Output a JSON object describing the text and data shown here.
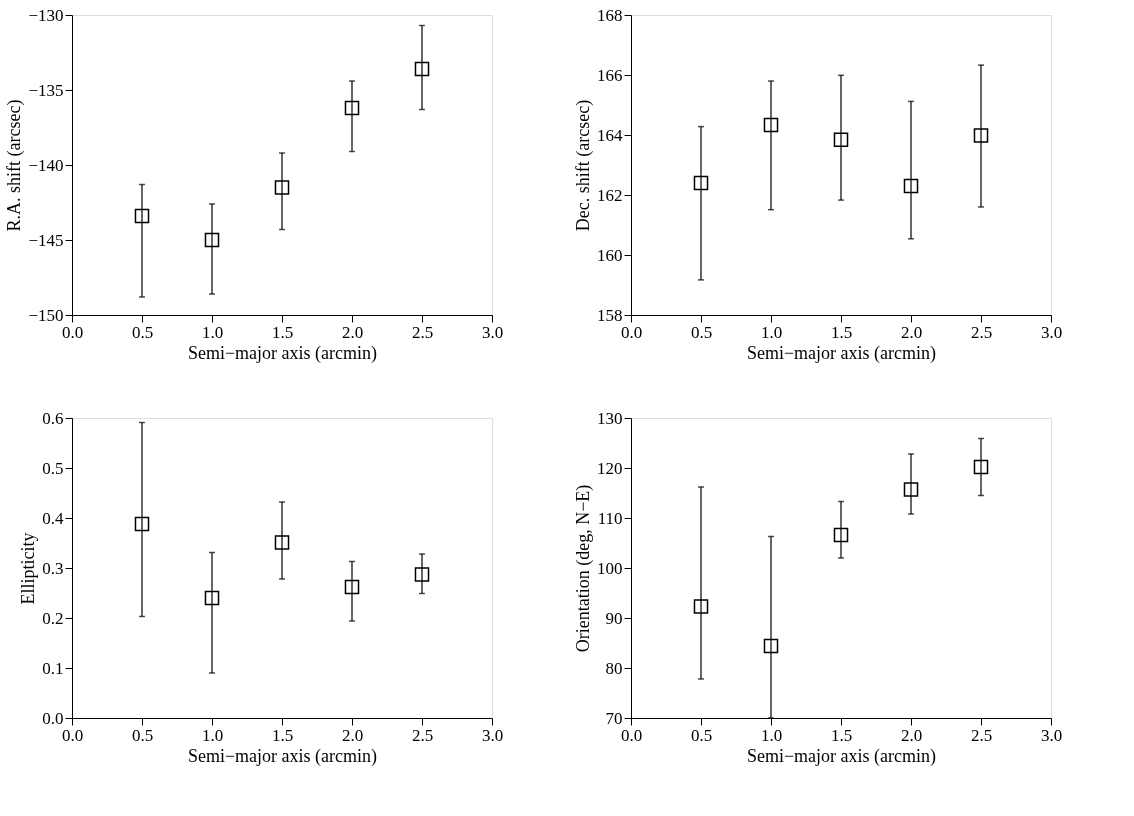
{
  "chart_data": [
    {
      "type": "scatter",
      "xlabel": "Semi−major axis (arcmin)",
      "ylabel": "R.A. shift (arcsec)",
      "x": [
        0.5,
        1.0,
        1.5,
        2.0,
        2.5
      ],
      "marker": "square",
      "grid": false,
      "xlim": [
        0,
        3
      ],
      "xticks": [
        {
          "value": 0,
          "label": "0.0"
        },
        {
          "value": 0.5,
          "label": "0.5"
        },
        {
          "value": 1,
          "label": "1.0"
        },
        {
          "value": 1.5,
          "label": "1.5"
        },
        {
          "value": 2,
          "label": "2.0"
        },
        {
          "value": 2.5,
          "label": "2.5"
        },
        {
          "value": 3,
          "label": "3.0"
        }
      ],
      "ylim": [
        -150,
        -130
      ],
      "yticks": [
        -150,
        -145,
        -140,
        -135,
        -130
      ],
      "series": [
        {
          "color": "#000000",
          "values": [
            -143.4,
            -145.0,
            -141.5,
            -136.2,
            -133.6
          ],
          "errors": [
            [
              -148.8,
              -141.3
            ],
            [
              -148.6,
              -142.6
            ],
            [
              -144.3,
              -139.2
            ],
            [
              -139.1,
              -134.4
            ],
            [
              -136.3,
              -130.7
            ]
          ]
        }
      ]
    },
    {
      "type": "scatter",
      "xlabel": "Semi−major axis (arcmin)",
      "ylabel": "Dec. shift (arcsec)",
      "x": [
        0.5,
        1.0,
        1.5,
        2.0,
        2.5
      ],
      "marker": "square",
      "grid": false,
      "xlim": [
        0,
        3
      ],
      "xticks": [
        {
          "value": 0,
          "label": "0.0"
        },
        {
          "value": 0.5,
          "label": "0.5"
        },
        {
          "value": 1,
          "label": "1.0"
        },
        {
          "value": 1.5,
          "label": "1.5"
        },
        {
          "value": 2,
          "label": "2.0"
        },
        {
          "value": 2.5,
          "label": "2.5"
        },
        {
          "value": 3,
          "label": "3.0"
        }
      ],
      "ylim": [
        158,
        168
      ],
      "yticks": [
        158,
        160,
        162,
        164,
        166,
        168
      ],
      "series": [
        {
          "color": "#000000",
          "values": [
            162.4,
            164.33,
            163.84,
            162.3,
            163.98
          ],
          "errors": [
            [
              159.17,
              164.28
            ],
            [
              161.51,
              165.8
            ],
            [
              161.83,
              165.99
            ],
            [
              160.54,
              165.12
            ],
            [
              161.6,
              166.33
            ]
          ]
        }
      ]
    },
    {
      "type": "scatter",
      "xlabel": "Semi−major axis (arcmin)",
      "ylabel": "Ellipticity",
      "x": [
        0.5,
        1.0,
        1.5,
        2.0,
        2.5
      ],
      "marker": "square",
      "grid": false,
      "xlim": [
        0,
        3
      ],
      "xticks": [
        {
          "value": 0,
          "label": "0.0"
        },
        {
          "value": 0.5,
          "label": "0.5"
        },
        {
          "value": 1,
          "label": "1.0"
        },
        {
          "value": 1.5,
          "label": "1.5"
        },
        {
          "value": 2,
          "label": "2.0"
        },
        {
          "value": 2.5,
          "label": "2.5"
        },
        {
          "value": 3,
          "label": "3.0"
        }
      ],
      "ylim": [
        0,
        0.6
      ],
      "yticks": [
        {
          "value": 0,
          "label": "0.0"
        },
        0.1,
        0.2,
        0.3,
        0.4,
        0.5,
        0.6
      ],
      "series": [
        {
          "color": "#000000",
          "values": [
            0.388,
            0.24,
            0.351,
            0.262,
            0.287
          ],
          "errors": [
            [
              0.203,
              0.591
            ],
            [
              0.09,
              0.331
            ],
            [
              0.278,
              0.432
            ],
            [
              0.194,
              0.313
            ],
            [
              0.249,
              0.328
            ]
          ]
        }
      ]
    },
    {
      "type": "scatter",
      "xlabel": "Semi−major axis (arcmin)",
      "ylabel": "Orientation (deg, N−E)",
      "x": [
        0.5,
        1.0,
        1.5,
        2.0,
        2.5
      ],
      "marker": "square",
      "grid": false,
      "xlim": [
        0,
        3
      ],
      "xticks": [
        {
          "value": 0,
          "label": "0.0"
        },
        {
          "value": 0.5,
          "label": "0.5"
        },
        {
          "value": 1,
          "label": "1.0"
        },
        {
          "value": 1.5,
          "label": "1.5"
        },
        {
          "value": 2,
          "label": "2.0"
        },
        {
          "value": 2.5,
          "label": "2.5"
        },
        {
          "value": 3,
          "label": "3.0"
        }
      ],
      "ylim": [
        70,
        130
      ],
      "yticks": [
        70,
        80,
        90,
        100,
        110,
        120,
        130
      ],
      "series": [
        {
          "color": "#000000",
          "values": [
            92.3,
            84.4,
            106.6,
            115.7,
            120.2
          ],
          "errors": [
            [
              77.8,
              116.2
            ],
            [
              70,
              106.3
            ],
            [
              102.0,
              113.3
            ],
            [
              110.8,
              122.8
            ],
            [
              114.5,
              125.9
            ]
          ]
        }
      ]
    }
  ]
}
